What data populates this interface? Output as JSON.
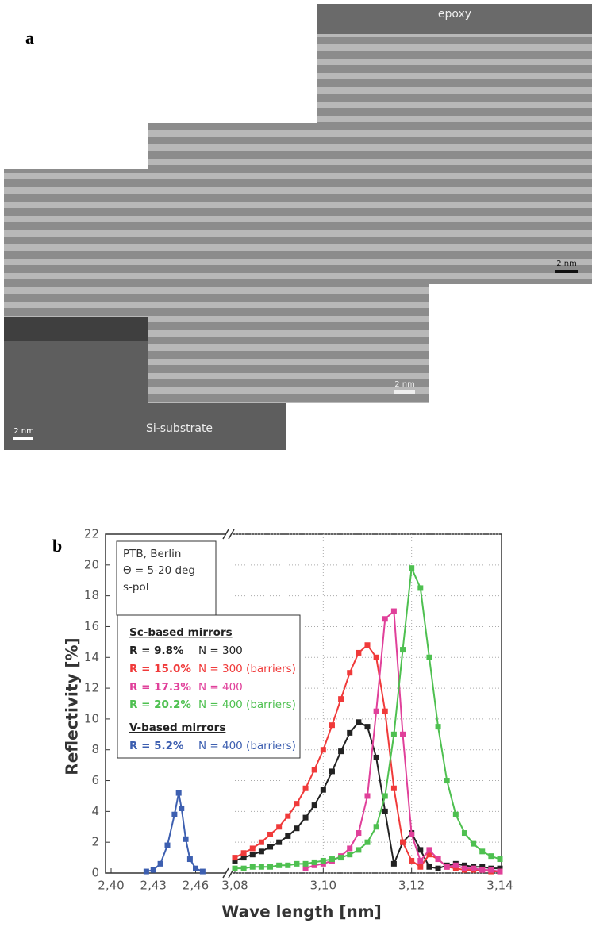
{
  "panel_a": {
    "label": "a",
    "top_label": "epoxy",
    "scale_bars": [
      "2 nm",
      "2 nm",
      "2 nm"
    ],
    "substrate_label": "Si-substrate"
  },
  "chart_data": {
    "type": "line",
    "panel_label": "b",
    "x_label": "Wave length [nm]",
    "y_label": "Reflectivity [%]",
    "info": [
      "PTB, Berlin",
      "Θ = 5-20 deg",
      "s-pol"
    ],
    "legend_groups": [
      "Sc-based mirrors",
      "V-based mirrors"
    ],
    "xlim": [
      2.4,
      3.14
    ],
    "x_break": [
      2.48,
      3.08
    ],
    "xticks": [
      {
        "value": 2.4,
        "label": "2,40"
      },
      {
        "value": 2.43,
        "label": "2,43"
      },
      {
        "value": 2.46,
        "label": "2,46"
      },
      {
        "value": 3.08,
        "label": "3,08"
      },
      {
        "value": 3.1,
        "label": "3,10"
      },
      {
        "value": 3.12,
        "label": "3,12"
      },
      {
        "value": 3.14,
        "label": "3,14"
      }
    ],
    "ylim": [
      0,
      22
    ],
    "yticks": [
      0,
      2,
      4,
      6,
      8,
      10,
      12,
      14,
      16,
      18,
      20,
      22
    ],
    "grid": true,
    "series": [
      {
        "name": "R = 9.8%",
        "note": "N = 300",
        "color": "#222222",
        "x": [
          3.08,
          3.082,
          3.084,
          3.086,
          3.088,
          3.09,
          3.092,
          3.094,
          3.096,
          3.098,
          3.1,
          3.102,
          3.104,
          3.106,
          3.108,
          3.11,
          3.112,
          3.114,
          3.116,
          3.118,
          3.12,
          3.122,
          3.124,
          3.126,
          3.128,
          3.13,
          3.132,
          3.134,
          3.136,
          3.138,
          3.14
        ],
        "values": [
          0.8,
          1.0,
          1.2,
          1.4,
          1.7,
          2.0,
          2.4,
          2.9,
          3.6,
          4.4,
          5.4,
          6.6,
          7.9,
          9.1,
          9.8,
          9.5,
          7.5,
          4.0,
          0.6,
          2.0,
          2.6,
          1.5,
          0.4,
          0.3,
          0.5,
          0.6,
          0.5,
          0.4,
          0.4,
          0.3,
          0.3
        ]
      },
      {
        "name": "R = 15.0%",
        "note": "N = 300 (barriers)",
        "color": "#f03a3a",
        "x": [
          3.08,
          3.082,
          3.084,
          3.086,
          3.088,
          3.09,
          3.092,
          3.094,
          3.096,
          3.098,
          3.1,
          3.102,
          3.104,
          3.106,
          3.108,
          3.11,
          3.112,
          3.114,
          3.116,
          3.118,
          3.12,
          3.122,
          3.124,
          3.126,
          3.128,
          3.13,
          3.132,
          3.134,
          3.136,
          3.138,
          3.14
        ],
        "values": [
          1.0,
          1.3,
          1.6,
          2.0,
          2.5,
          3.0,
          3.7,
          4.5,
          5.5,
          6.7,
          8.0,
          9.6,
          11.3,
          13.0,
          14.3,
          14.8,
          14.0,
          10.5,
          5.5,
          2.0,
          0.8,
          0.4,
          1.2,
          0.9,
          0.4,
          0.3,
          0.2,
          0.2,
          0.2,
          0.1,
          0.1
        ]
      },
      {
        "name": "R = 17.3%",
        "note": "N = 400",
        "color": "#e0409a",
        "x": [
          3.096,
          3.098,
          3.1,
          3.102,
          3.104,
          3.106,
          3.108,
          3.11,
          3.112,
          3.114,
          3.116,
          3.118,
          3.12,
          3.122,
          3.124,
          3.126,
          3.128,
          3.13,
          3.132,
          3.134,
          3.136,
          3.138,
          3.14
        ],
        "values": [
          0.3,
          0.5,
          0.6,
          0.8,
          1.1,
          1.6,
          2.6,
          5.0,
          10.5,
          16.5,
          17.0,
          9.0,
          2.5,
          0.8,
          1.5,
          0.9,
          0.4,
          0.5,
          0.3,
          0.3,
          0.2,
          0.2,
          0.1
        ]
      },
      {
        "name": "R = 20.2%",
        "note": "N = 400 (barriers)",
        "color": "#4ec050",
        "x": [
          3.08,
          3.082,
          3.084,
          3.086,
          3.088,
          3.09,
          3.092,
          3.094,
          3.096,
          3.098,
          3.1,
          3.102,
          3.104,
          3.106,
          3.108,
          3.11,
          3.112,
          3.114,
          3.116,
          3.118,
          3.12,
          3.122,
          3.124,
          3.126,
          3.128,
          3.13,
          3.132,
          3.134,
          3.136,
          3.138,
          3.14
        ],
        "values": [
          0.3,
          0.3,
          0.4,
          0.4,
          0.4,
          0.5,
          0.5,
          0.6,
          0.6,
          0.7,
          0.8,
          0.9,
          1.0,
          1.2,
          1.5,
          2.0,
          3.0,
          5.0,
          9.0,
          14.5,
          19.8,
          18.5,
          14.0,
          9.5,
          6.0,
          3.8,
          2.6,
          1.9,
          1.4,
          1.1,
          0.9
        ]
      },
      {
        "name": "R = 5.2%",
        "note": "N = 400 (barriers)",
        "color": "#3d5fb0",
        "x": [
          2.425,
          2.43,
          2.435,
          2.44,
          2.445,
          2.448,
          2.45,
          2.453,
          2.456,
          2.46,
          2.465
        ],
        "values": [
          0.1,
          0.2,
          0.6,
          1.8,
          3.8,
          5.2,
          4.2,
          2.2,
          0.9,
          0.3,
          0.1
        ]
      }
    ]
  }
}
